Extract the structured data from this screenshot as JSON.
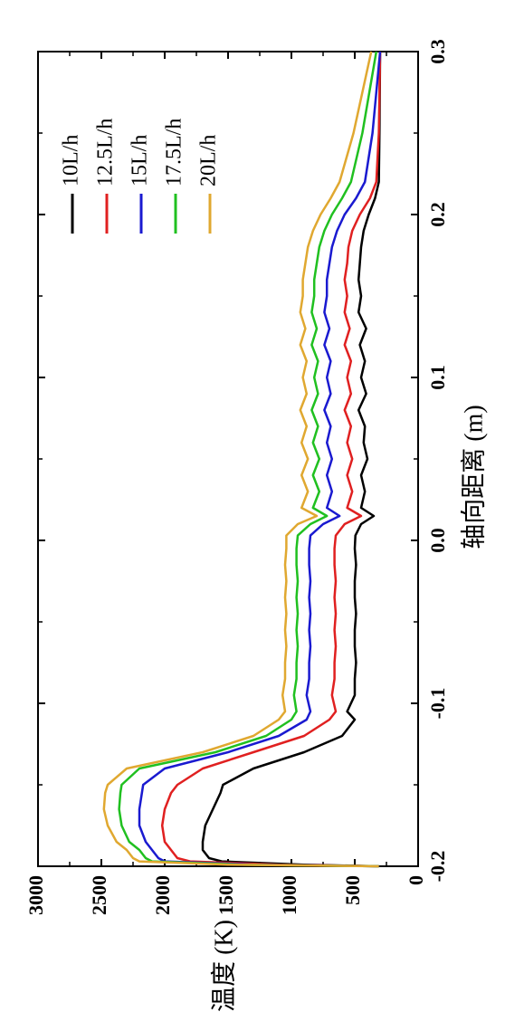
{
  "chart_data": {
    "type": "line",
    "xlabel": "轴向距离 (m)",
    "ylabel": "温度 (K)",
    "xlim": [
      -0.2,
      0.3
    ],
    "ylim": [
      0,
      3000
    ],
    "xticks": [
      -0.2,
      -0.1,
      0.0,
      0.1,
      0.2,
      0.3
    ],
    "xtick_labels": [
      "-0.2",
      "-0.1",
      "0.0",
      "0.1",
      "0.2",
      "0.3"
    ],
    "yticks": [
      0,
      500,
      1000,
      1500,
      2000,
      2500,
      3000
    ],
    "ytick_labels": [
      "0",
      "500",
      "1000",
      "1500",
      "2000",
      "2500",
      "3000"
    ],
    "legend_position": "top-right",
    "series": [
      {
        "name": "10L/h",
        "color": "#000000",
        "x": [
          -0.2,
          -0.199,
          -0.197,
          -0.195,
          -0.19,
          -0.185,
          -0.175,
          -0.165,
          -0.155,
          -0.15,
          -0.14,
          -0.13,
          -0.12,
          -0.11,
          -0.105,
          -0.095,
          -0.085,
          -0.075,
          -0.065,
          -0.055,
          -0.045,
          -0.035,
          -0.025,
          -0.015,
          -0.005,
          0.003,
          0.01,
          0.015,
          0.02,
          0.03,
          0.04,
          0.05,
          0.06,
          0.07,
          0.08,
          0.09,
          0.1,
          0.11,
          0.12,
          0.13,
          0.14,
          0.15,
          0.16,
          0.17,
          0.18,
          0.19,
          0.2,
          0.21,
          0.22,
          0.25,
          0.3
        ],
        "y": [
          310,
          900,
          1550,
          1650,
          1700,
          1700,
          1680,
          1620,
          1560,
          1540,
          1300,
          900,
          600,
          500,
          560,
          500,
          500,
          490,
          500,
          500,
          490,
          500,
          500,
          490,
          500,
          495,
          450,
          350,
          450,
          420,
          450,
          400,
          430,
          420,
          470,
          410,
          450,
          420,
          460,
          410,
          470,
          450,
          470,
          460,
          450,
          430,
          390,
          340,
          310,
          305,
          300
        ]
      },
      {
        "name": "12.5L/h",
        "color": "#e02020",
        "x": [
          -0.2,
          -0.199,
          -0.197,
          -0.195,
          -0.19,
          -0.185,
          -0.175,
          -0.165,
          -0.155,
          -0.15,
          -0.14,
          -0.13,
          -0.12,
          -0.11,
          -0.105,
          -0.095,
          -0.085,
          -0.075,
          -0.065,
          -0.055,
          -0.045,
          -0.035,
          -0.025,
          -0.015,
          -0.005,
          0.003,
          0.01,
          0.015,
          0.02,
          0.03,
          0.04,
          0.05,
          0.06,
          0.07,
          0.08,
          0.09,
          0.1,
          0.11,
          0.12,
          0.13,
          0.14,
          0.15,
          0.16,
          0.17,
          0.18,
          0.19,
          0.2,
          0.21,
          0.22,
          0.25,
          0.3
        ],
        "y": [
          310,
          1100,
          1800,
          1900,
          1950,
          2000,
          2020,
          2000,
          1950,
          1900,
          1700,
          1300,
          900,
          700,
          650,
          680,
          660,
          660,
          650,
          660,
          650,
          660,
          650,
          660,
          660,
          650,
          580,
          450,
          560,
          520,
          560,
          520,
          560,
          530,
          580,
          530,
          560,
          530,
          580,
          540,
          580,
          560,
          580,
          560,
          550,
          520,
          460,
          380,
          330,
          310,
          300
        ]
      },
      {
        "name": "15L/h",
        "color": "#1a1ad0",
        "x": [
          -0.2,
          -0.199,
          -0.197,
          -0.195,
          -0.19,
          -0.185,
          -0.175,
          -0.165,
          -0.155,
          -0.15,
          -0.14,
          -0.13,
          -0.12,
          -0.11,
          -0.105,
          -0.095,
          -0.085,
          -0.075,
          -0.065,
          -0.055,
          -0.045,
          -0.035,
          -0.025,
          -0.015,
          -0.005,
          0.003,
          0.01,
          0.015,
          0.02,
          0.03,
          0.04,
          0.05,
          0.06,
          0.07,
          0.08,
          0.09,
          0.1,
          0.11,
          0.12,
          0.13,
          0.14,
          0.15,
          0.16,
          0.17,
          0.18,
          0.19,
          0.2,
          0.21,
          0.22,
          0.25,
          0.3
        ],
        "y": [
          310,
          1300,
          2000,
          2050,
          2100,
          2150,
          2200,
          2200,
          2180,
          2170,
          2000,
          1500,
          1100,
          880,
          850,
          880,
          860,
          860,
          850,
          860,
          850,
          860,
          850,
          860,
          860,
          850,
          750,
          620,
          720,
          680,
          720,
          680,
          720,
          690,
          740,
          690,
          720,
          690,
          740,
          700,
          740,
          720,
          720,
          700,
          680,
          640,
          580,
          490,
          420,
          360,
          300
        ]
      },
      {
        "name": "17.5L/h",
        "color": "#20c020",
        "x": [
          -0.2,
          -0.199,
          -0.197,
          -0.195,
          -0.19,
          -0.185,
          -0.175,
          -0.165,
          -0.155,
          -0.15,
          -0.14,
          -0.13,
          -0.12,
          -0.11,
          -0.105,
          -0.095,
          -0.085,
          -0.075,
          -0.065,
          -0.055,
          -0.045,
          -0.035,
          -0.025,
          -0.015,
          -0.005,
          0.003,
          0.01,
          0.015,
          0.02,
          0.03,
          0.04,
          0.05,
          0.06,
          0.07,
          0.08,
          0.09,
          0.1,
          0.11,
          0.12,
          0.13,
          0.14,
          0.15,
          0.16,
          0.17,
          0.18,
          0.19,
          0.2,
          0.21,
          0.22,
          0.25,
          0.3
        ],
        "y": [
          310,
          1400,
          2100,
          2150,
          2200,
          2280,
          2340,
          2360,
          2350,
          2340,
          2200,
          1600,
          1200,
          1000,
          960,
          980,
          960,
          960,
          950,
          960,
          950,
          960,
          950,
          960,
          960,
          950,
          850,
          720,
          830,
          780,
          830,
          780,
          830,
          790,
          840,
          790,
          820,
          790,
          840,
          800,
          840,
          820,
          820,
          800,
          780,
          740,
          680,
          600,
          530,
          440,
          330
        ]
      },
      {
        "name": "20L/h",
        "color": "#e0a830",
        "x": [
          -0.2,
          -0.199,
          -0.197,
          -0.195,
          -0.19,
          -0.185,
          -0.175,
          -0.165,
          -0.155,
          -0.15,
          -0.14,
          -0.13,
          -0.12,
          -0.11,
          -0.105,
          -0.095,
          -0.085,
          -0.075,
          -0.065,
          -0.055,
          -0.045,
          -0.035,
          -0.025,
          -0.015,
          -0.005,
          0.003,
          0.01,
          0.015,
          0.02,
          0.03,
          0.04,
          0.05,
          0.06,
          0.07,
          0.08,
          0.09,
          0.1,
          0.11,
          0.12,
          0.13,
          0.14,
          0.15,
          0.16,
          0.17,
          0.18,
          0.19,
          0.2,
          0.21,
          0.22,
          0.25,
          0.3
        ],
        "y": [
          310,
          1500,
          2200,
          2250,
          2300,
          2380,
          2450,
          2480,
          2470,
          2450,
          2300,
          1700,
          1300,
          1100,
          1050,
          1070,
          1050,
          1050,
          1040,
          1050,
          1040,
          1050,
          1040,
          1050,
          1040,
          1040,
          950,
          800,
          920,
          870,
          920,
          870,
          920,
          880,
          930,
          880,
          910,
          880,
          930,
          890,
          930,
          910,
          910,
          890,
          870,
          830,
          770,
          690,
          620,
          510,
          370
        ]
      }
    ]
  }
}
